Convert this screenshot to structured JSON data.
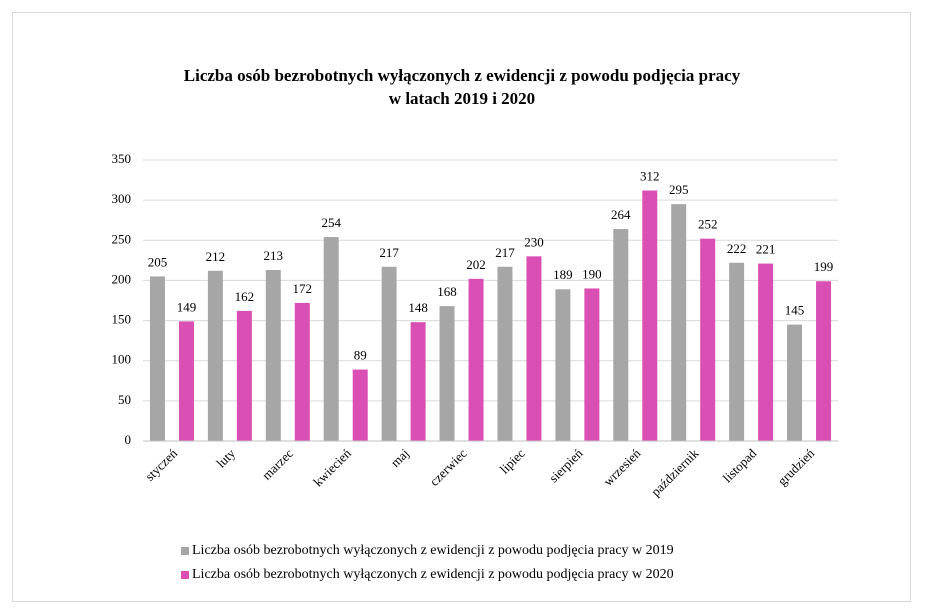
{
  "chart_data": {
    "type": "bar",
    "title": "Liczba osób bezrobotnych wyłączonych z ewidencji z powodu podjęcia pracy w latach 2019 i 2020",
    "categories": [
      "styczeń",
      "luty",
      "marzec",
      "kwiecień",
      "maj",
      "czerwiec",
      "lipiec",
      "sierpień",
      "wrzesień",
      "październik",
      "listopad",
      "grudzień"
    ],
    "series": [
      {
        "name": "Liczba osób bezrobotnych wyłączonych z ewidencji z powodu podjęcia pracy w 2019",
        "color": "#a6a6a6",
        "values": [
          205,
          212,
          213,
          254,
          217,
          168,
          217,
          189,
          264,
          295,
          222,
          145
        ]
      },
      {
        "name": "Liczba osób bezrobotnych wyłączonych z ewidencji z powodu podjęcia pracy w 2020",
        "color": "#d94fb3",
        "values": [
          149,
          162,
          172,
          89,
          148,
          202,
          230,
          190,
          312,
          252,
          221,
          199
        ]
      }
    ],
    "ylim": [
      0,
      350
    ],
    "yticks": [
      0,
      50,
      100,
      150,
      200,
      250,
      300,
      350
    ],
    "grid": true,
    "legend": "bottom"
  }
}
